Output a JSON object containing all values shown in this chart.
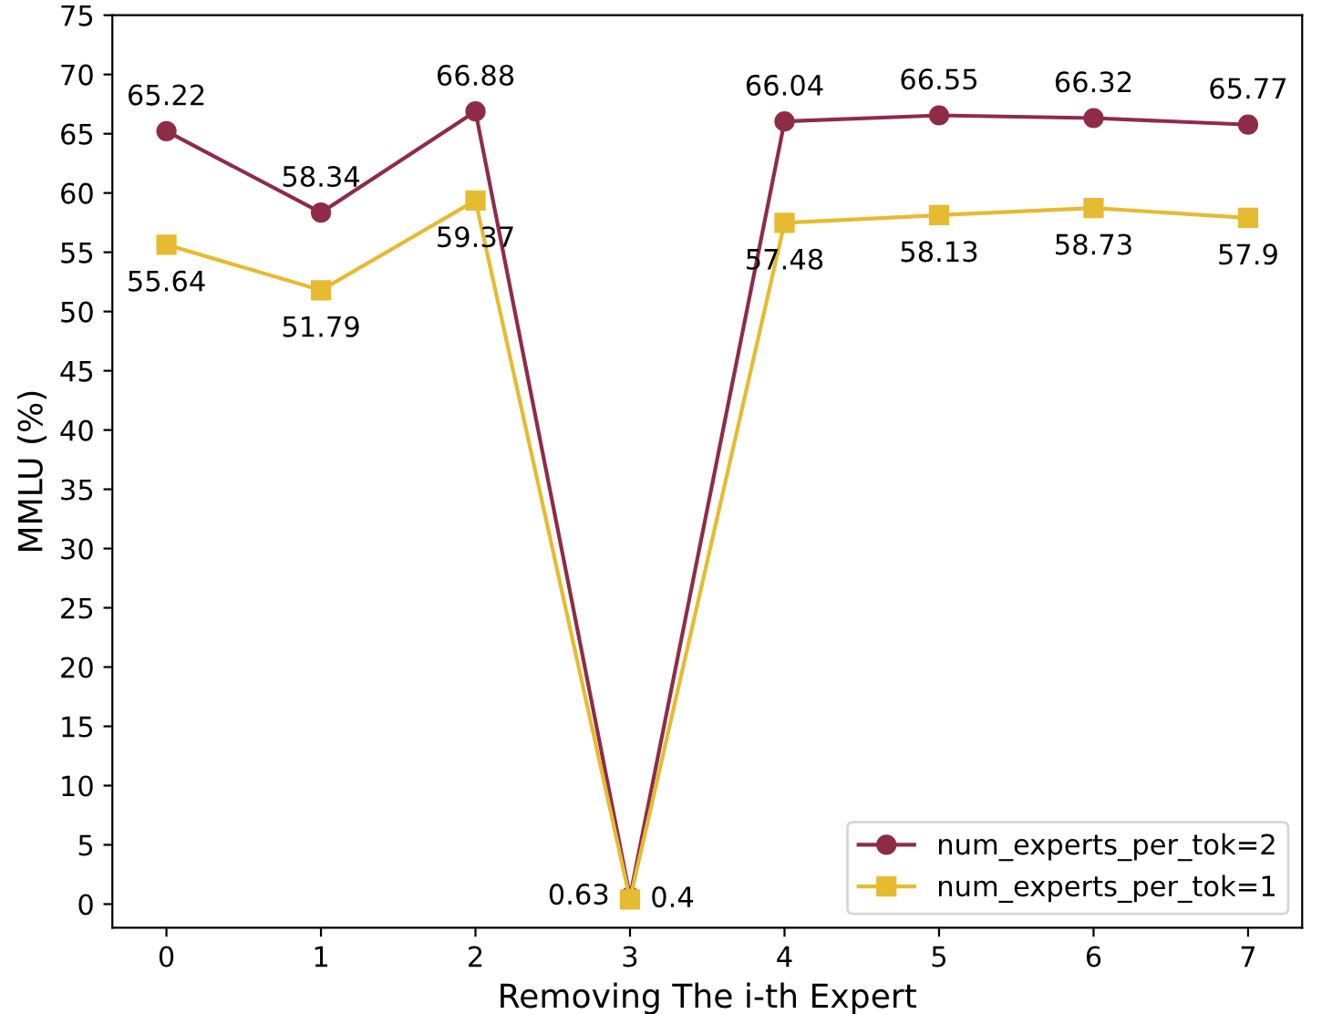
{
  "chart_data": {
    "type": "line",
    "xlabel": "Removing The i-th Expert",
    "ylabel": "MMLU (%)",
    "x": [
      0,
      1,
      2,
      3,
      4,
      5,
      6,
      7
    ],
    "series": [
      {
        "name": "num_experts_per_tok=2",
        "color": "#8e2c48",
        "marker": "circle",
        "values": [
          65.22,
          58.34,
          66.88,
          0.63,
          66.04,
          66.55,
          66.32,
          65.77
        ]
      },
      {
        "name": "num_experts_per_tok=1",
        "color": "#e6bb32",
        "marker": "square",
        "values": [
          55.64,
          51.79,
          59.37,
          0.4,
          57.48,
          58.13,
          58.73,
          57.9
        ]
      }
    ],
    "xlim": [
      -0.35,
      7.35
    ],
    "xticks": [
      0,
      1,
      2,
      3,
      4,
      5,
      6,
      7
    ],
    "ylim": [
      -2,
      75
    ],
    "yticks": [
      0,
      5,
      10,
      15,
      20,
      25,
      30,
      35,
      40,
      45,
      50,
      55,
      60,
      65,
      70,
      75
    ],
    "data_labels": true,
    "legend": "bottom right",
    "grid": false,
    "line_style": "solid"
  }
}
